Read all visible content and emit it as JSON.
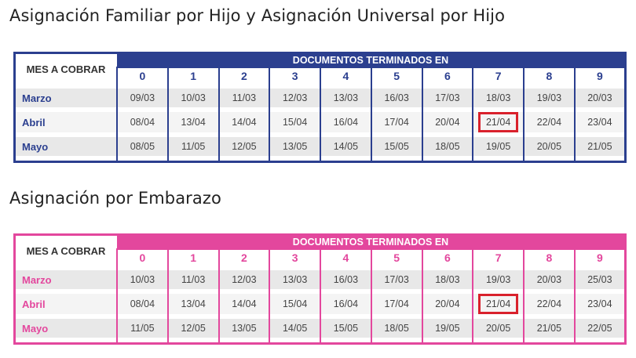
{
  "sections": [
    {
      "title": "Asignación Familiar por Hijo y Asignación Universal por Hijo",
      "header_left": "MES A COBRAR",
      "header_right": "DOCUMENTOS TERMINADOS EN",
      "digits": [
        "0",
        "1",
        "2",
        "3",
        "4",
        "5",
        "6",
        "7",
        "8",
        "9"
      ],
      "rows": [
        {
          "month": "Marzo",
          "dates": [
            "09/03",
            "10/03",
            "11/03",
            "12/03",
            "13/03",
            "16/03",
            "17/03",
            "18/03",
            "19/03",
            "20/03"
          ]
        },
        {
          "month": "Abril",
          "dates": [
            "08/04",
            "13/04",
            "14/04",
            "15/04",
            "16/04",
            "17/04",
            "20/04",
            "21/04",
            "22/04",
            "23/04"
          ]
        },
        {
          "month": "Mayo",
          "dates": [
            "08/05",
            "11/05",
            "12/05",
            "13/05",
            "14/05",
            "15/05",
            "18/05",
            "19/05",
            "20/05",
            "21/05"
          ]
        }
      ],
      "highlight": {
        "row": 1,
        "col": 7
      },
      "color": "#2b3f8f"
    },
    {
      "title": "Asignación por Embarazo",
      "header_left": "MES A COBRAR",
      "header_right": "DOCUMENTOS TERMINADOS EN",
      "digits": [
        "0",
        "1",
        "2",
        "3",
        "4",
        "5",
        "6",
        "7",
        "8",
        "9"
      ],
      "rows": [
        {
          "month": "Marzo",
          "dates": [
            "10/03",
            "11/03",
            "12/03",
            "13/03",
            "16/03",
            "17/03",
            "18/03",
            "19/03",
            "20/03",
            "25/03"
          ]
        },
        {
          "month": "Abril",
          "dates": [
            "08/04",
            "13/04",
            "14/04",
            "15/04",
            "16/04",
            "17/04",
            "20/04",
            "21/04",
            "22/04",
            "23/04"
          ]
        },
        {
          "month": "Mayo",
          "dates": [
            "11/05",
            "12/05",
            "13/05",
            "14/05",
            "15/05",
            "18/05",
            "19/05",
            "20/05",
            "21/05",
            "22/05"
          ]
        }
      ],
      "highlight": {
        "row": 1,
        "col": 7
      },
      "color": "#e3479d",
      "highlight_color": "#d9212c"
    }
  ]
}
